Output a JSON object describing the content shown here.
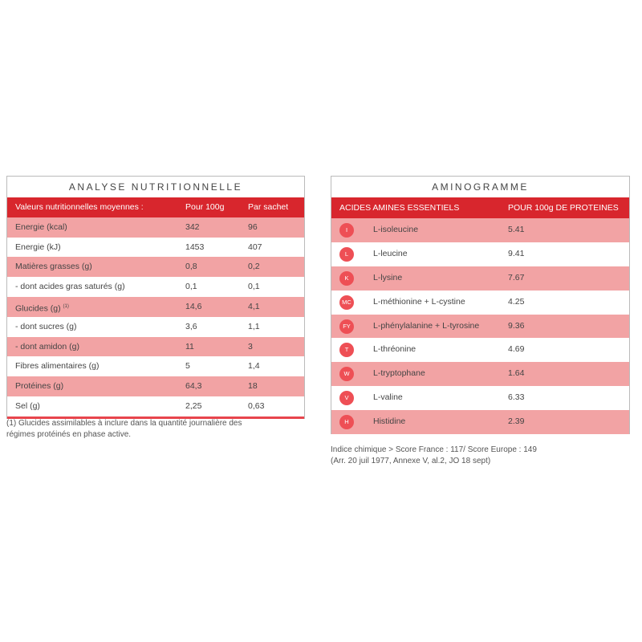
{
  "nutrition": {
    "title": "ANALYSE NUTRITIONNELLE",
    "headers": [
      "Valeurs nutritionnelles moyennes :",
      "Pour 100g",
      "Par sachet"
    ],
    "rows": [
      {
        "label": "Energie (kcal)",
        "per100": "342",
        "sachet": "96"
      },
      {
        "label": "Energie  (kJ)",
        "per100": "1453",
        "sachet": "407"
      },
      {
        "label": "Matières grasses (g)",
        "per100": "0,8",
        "sachet": "0,2"
      },
      {
        "label": "- dont acides gras saturés (g)",
        "per100": "0,1",
        "sachet": "0,1"
      },
      {
        "label": "Glucides (g)",
        "sup": "(1)",
        "per100": "14,6",
        "sachet": "4,1"
      },
      {
        "label": "- dont sucres (g)",
        "per100": "3,6",
        "sachet": "1,1"
      },
      {
        "label": "- dont amidon (g)",
        "per100": "11",
        "sachet": "3"
      },
      {
        "label": "Fibres alimentaires (g)",
        "per100": "5",
        "sachet": "1,4"
      },
      {
        "label": "Protéines (g)",
        "per100": "64,3",
        "sachet": "18"
      },
      {
        "label": "Sel (g)",
        "per100": "2,25",
        "sachet": "0,63"
      }
    ],
    "footnote_line1": "(1) Glucides assimilables à inclure dans la quantité journalière des",
    "footnote_line2": "régimes protéinés en phase active."
  },
  "amino": {
    "title": "AMINOGRAMME",
    "headers": [
      "ACIDES AMINES ESSENTIELS",
      "POUR 100g DE PROTEINES"
    ],
    "rows": [
      {
        "code": "I",
        "name": "L-isoleucine",
        "value": "5.41"
      },
      {
        "code": "L",
        "name": "L-leucine",
        "value": "9.41"
      },
      {
        "code": "K",
        "name": "L-lysine",
        "value": "7.67"
      },
      {
        "code": "MC",
        "name": "L-méthionine + L-cystine",
        "value": "4.25"
      },
      {
        "code": "FY",
        "name": "L-phénylalanine + L-tyrosine",
        "value": "9.36"
      },
      {
        "code": "T",
        "name": "L-thréonine",
        "value": "4.69"
      },
      {
        "code": "W",
        "name": "L-tryptophane",
        "value": "1.64"
      },
      {
        "code": "V",
        "name": "L-valine",
        "value": "6.33"
      },
      {
        "code": "H",
        "name": "Histidine",
        "value": "2.39"
      }
    ],
    "note_line1": "Indice chimique > Score France : 117/ Score Europe : 149",
    "note_line2": "(Arr. 20 juil 1977, Annexe V, al.2, JO 18 sept)"
  }
}
